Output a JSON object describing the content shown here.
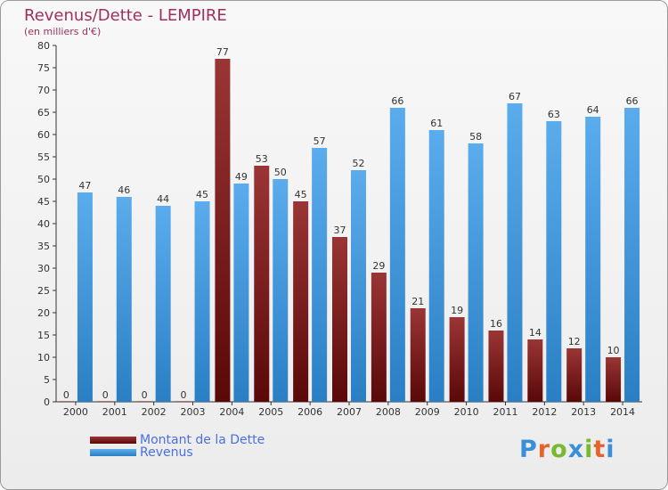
{
  "title": "Revenus/Dette - LEMPIRE",
  "subtitle": "(en milliers d'€)",
  "logo": {
    "text": "Proxiti",
    "letter_colors": [
      "#3a8fd8",
      "#e8632a",
      "#7ab82e",
      "#3a8fd8",
      "#7ab82e",
      "#e8632a",
      "#3a8fd8"
    ]
  },
  "chart_data": {
    "type": "bar",
    "categories": [
      "2000",
      "2001",
      "2002",
      "2003",
      "2004",
      "2005",
      "2006",
      "2007",
      "2008",
      "2009",
      "2010",
      "2011",
      "2012",
      "2013",
      "2014"
    ],
    "series": [
      {
        "name": "Montant de la Dette",
        "color": "#7b1c1c",
        "values": [
          0,
          0,
          0,
          0,
          77,
          53,
          45,
          37,
          29,
          21,
          19,
          16,
          14,
          12,
          10
        ]
      },
      {
        "name": "Revenus",
        "color": "#3d96dc",
        "values": [
          47,
          46,
          44,
          45,
          49,
          50,
          57,
          52,
          66,
          61,
          58,
          67,
          63,
          64,
          66
        ]
      }
    ],
    "ylim": [
      0,
      80
    ],
    "yticks": [
      0,
      5,
      10,
      15,
      20,
      25,
      30,
      35,
      40,
      45,
      50,
      55,
      60,
      65,
      70,
      75,
      80
    ],
    "grid": false,
    "legend_position": "bottom-left"
  }
}
